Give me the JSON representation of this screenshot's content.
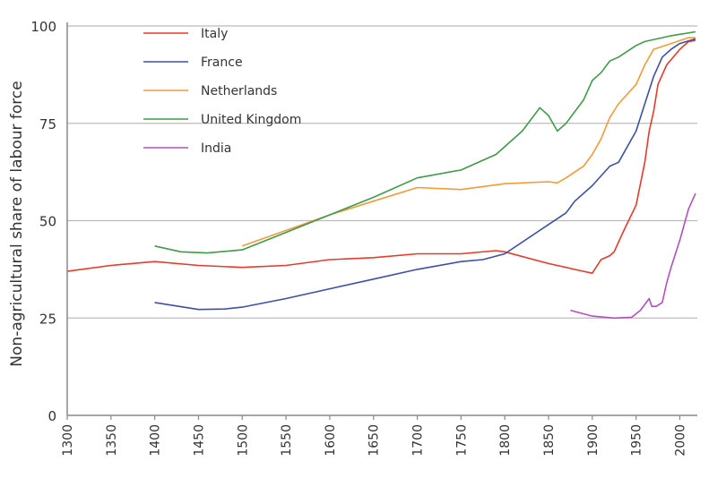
{
  "chart_data": {
    "type": "line",
    "title": "",
    "xlabel": "",
    "ylabel": "Non-agricultural share of labour force",
    "xlim": [
      1300,
      2020
    ],
    "ylim": [
      0,
      100
    ],
    "xticks": [
      1300,
      1350,
      1400,
      1450,
      1500,
      1550,
      1600,
      1650,
      1700,
      1750,
      1800,
      1850,
      1900,
      1950,
      2000
    ],
    "yticks": [
      0,
      25,
      50,
      75,
      100
    ],
    "grid": "horizontal",
    "legend": "top-left",
    "series": [
      {
        "name": "Italy",
        "color": "#e63a2a",
        "x": [
          1300,
          1350,
          1400,
          1450,
          1500,
          1550,
          1600,
          1650,
          1700,
          1750,
          1790,
          1800,
          1850,
          1890,
          1900,
          1910,
          1920,
          1925,
          1935,
          1950,
          1960,
          1965,
          1970,
          1975,
          1985,
          2000,
          2010,
          2018
        ],
        "y": [
          37,
          38.5,
          39.5,
          38.5,
          38,
          38.5,
          40,
          40.5,
          41.5,
          41.5,
          42.3,
          42,
          39,
          37,
          36.5,
          40,
          41,
          42,
          47,
          54,
          65,
          73,
          78,
          85,
          90,
          94,
          96,
          96.3
        ]
      },
      {
        "name": "France",
        "color": "#3d4fa8",
        "x": [
          1400,
          1450,
          1480,
          1500,
          1550,
          1600,
          1650,
          1700,
          1750,
          1775,
          1800,
          1850,
          1870,
          1880,
          1900,
          1920,
          1930,
          1950,
          1960,
          1970,
          1980,
          1990,
          2000,
          2018
        ],
        "y": [
          29,
          27.2,
          27.3,
          27.8,
          30,
          32.5,
          35,
          37.5,
          39.5,
          40,
          41.5,
          49,
          52,
          55,
          59,
          64,
          65,
          73,
          80,
          87,
          92,
          94,
          95.5,
          96.7
        ]
      },
      {
        "name": "Netherlands",
        "color": "#f29b38",
        "x": [
          1500,
          1550,
          1600,
          1650,
          1700,
          1750,
          1800,
          1850,
          1860,
          1870,
          1890,
          1900,
          1910,
          1920,
          1930,
          1950,
          1960,
          1970,
          1990,
          2010,
          2018
        ],
        "y": [
          43.5,
          47.5,
          51.5,
          55,
          58.5,
          58,
          59.5,
          60,
          59.7,
          61,
          64,
          67,
          71,
          76.5,
          80,
          85,
          90,
          94,
          95.5,
          97,
          97
        ]
      },
      {
        "name": "United Kingdom",
        "color": "#3f9b48",
        "x": [
          1400,
          1430,
          1460,
          1500,
          1550,
          1600,
          1650,
          1700,
          1750,
          1790,
          1820,
          1840,
          1850,
          1860,
          1870,
          1890,
          1900,
          1910,
          1920,
          1930,
          1950,
          1960,
          1980,
          1990,
          2018
        ],
        "y": [
          43.5,
          42,
          41.7,
          42.5,
          47,
          51.5,
          56,
          61,
          63,
          67,
          73,
          79,
          77,
          73,
          75,
          81,
          86,
          88,
          91,
          92,
          95,
          96,
          97,
          97.5,
          98.5
        ]
      },
      {
        "name": "India",
        "color": "#b44fc0",
        "x": [
          1875,
          1900,
          1925,
          1945,
          1955,
          1965,
          1968,
          1973,
          1980,
          1985,
          1990,
          2000,
          2010,
          2018
        ],
        "y": [
          27,
          25.5,
          25,
          25.2,
          27,
          30,
          28,
          28,
          29,
          34,
          38,
          45,
          53,
          57
        ]
      }
    ]
  }
}
